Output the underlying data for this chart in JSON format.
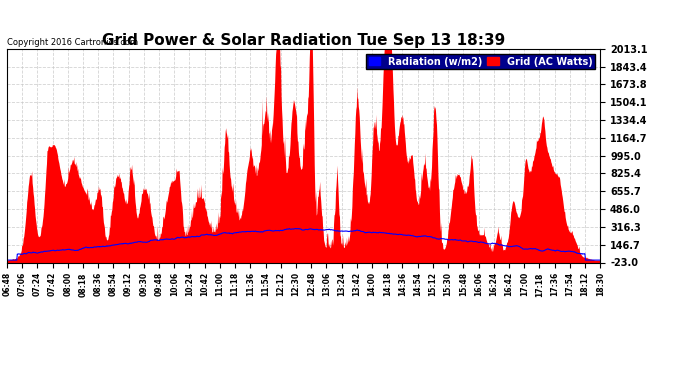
{
  "title": "Grid Power & Solar Radiation Tue Sep 13 18:39",
  "copyright": "Copyright 2016 Cartronics.com",
  "background_color": "#ffffff",
  "plot_bg_color": "#ffffff",
  "grid_color": "#c8c8c8",
  "yticks": [
    2013.1,
    1843.4,
    1673.8,
    1504.1,
    1334.4,
    1164.7,
    995.0,
    825.4,
    655.7,
    486.0,
    316.3,
    146.7,
    -23.0
  ],
  "ymin": -23.0,
  "ymax": 2013.1,
  "legend_radiation_label": "Radiation (w/m2)",
  "legend_grid_label": "Grid (AC Watts)",
  "radiation_color": "#0000ff",
  "grid_fill_color": "#ff0000",
  "xtick_labels": [
    "06:48",
    "07:06",
    "07:24",
    "07:42",
    "08:00",
    "08:18",
    "08:36",
    "08:54",
    "09:12",
    "09:30",
    "09:48",
    "10:06",
    "10:24",
    "10:42",
    "11:00",
    "11:18",
    "11:36",
    "11:54",
    "12:12",
    "12:30",
    "12:48",
    "13:06",
    "13:24",
    "13:42",
    "14:00",
    "14:18",
    "14:36",
    "14:54",
    "15:12",
    "15:30",
    "15:48",
    "16:06",
    "16:24",
    "16:42",
    "17:00",
    "17:18",
    "17:36",
    "17:54",
    "18:12",
    "18:30"
  ]
}
